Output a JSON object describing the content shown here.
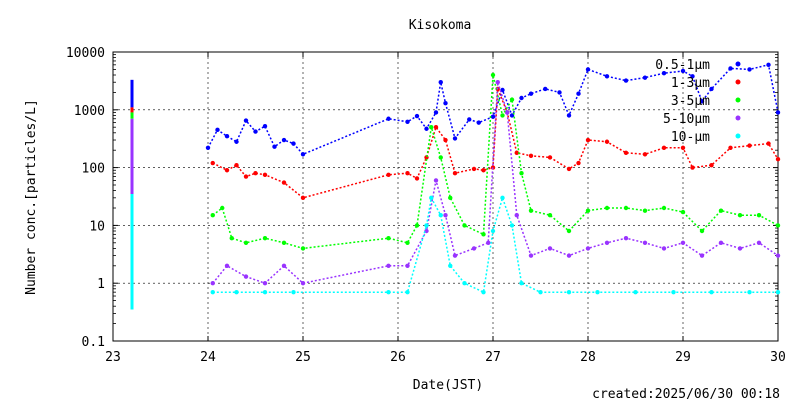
{
  "chart_data": {
    "type": "scatter",
    "title": "Kisokoma",
    "xlabel": "Date(JST)",
    "ylabel": "Number conc.[particles/L]",
    "footer": "created:2025/06/30 00:18",
    "x_range": [
      23,
      30
    ],
    "y_range": [
      0.1,
      10000
    ],
    "y_scale": "log",
    "x_ticks": [
      "23",
      "24",
      "25",
      "26",
      "27",
      "28",
      "29",
      "30"
    ],
    "y_ticks": [
      "0.1",
      "1",
      "10",
      "100",
      "1000",
      "10000"
    ],
    "grid": true,
    "legend_position": "top-right",
    "series": [
      {
        "name": "0.5-1μm",
        "color": "#0000ff",
        "points": [
          [
            24.0,
            220
          ],
          [
            24.1,
            450
          ],
          [
            24.2,
            350
          ],
          [
            24.3,
            280
          ],
          [
            24.4,
            650
          ],
          [
            24.5,
            420
          ],
          [
            24.6,
            520
          ],
          [
            24.7,
            230
          ],
          [
            24.8,
            300
          ],
          [
            24.9,
            260
          ],
          [
            25.0,
            170
          ],
          [
            25.9,
            700
          ],
          [
            26.1,
            620
          ],
          [
            26.2,
            780
          ],
          [
            26.3,
            470
          ],
          [
            26.4,
            900
          ],
          [
            26.45,
            3000
          ],
          [
            26.5,
            1300
          ],
          [
            26.6,
            320
          ],
          [
            26.75,
            680
          ],
          [
            26.85,
            600
          ],
          [
            27.0,
            760
          ],
          [
            27.1,
            2200
          ],
          [
            27.2,
            800
          ],
          [
            27.3,
            1600
          ],
          [
            27.4,
            1900
          ],
          [
            27.55,
            2300
          ],
          [
            27.7,
            2000
          ],
          [
            27.8,
            800
          ],
          [
            27.9,
            1900
          ],
          [
            28.0,
            5000
          ],
          [
            28.2,
            3800
          ],
          [
            28.4,
            3200
          ],
          [
            28.6,
            3600
          ],
          [
            28.8,
            4300
          ],
          [
            29.0,
            4700
          ],
          [
            29.1,
            3800
          ],
          [
            29.2,
            1400
          ],
          [
            29.3,
            2300
          ],
          [
            29.5,
            5200
          ],
          [
            29.7,
            5000
          ],
          [
            29.9,
            6000
          ],
          [
            30.0,
            900
          ]
        ]
      },
      {
        "name": "1-3μm",
        "color": "#ff0000",
        "points": [
          [
            24.05,
            120
          ],
          [
            24.2,
            90
          ],
          [
            24.3,
            110
          ],
          [
            24.4,
            70
          ],
          [
            24.5,
            80
          ],
          [
            24.6,
            75
          ],
          [
            24.8,
            55
          ],
          [
            25.0,
            30
          ],
          [
            25.9,
            75
          ],
          [
            26.1,
            80
          ],
          [
            26.2,
            65
          ],
          [
            26.3,
            150
          ],
          [
            26.4,
            500
          ],
          [
            26.5,
            300
          ],
          [
            26.6,
            80
          ],
          [
            26.8,
            95
          ],
          [
            26.9,
            90
          ],
          [
            27.0,
            100
          ],
          [
            27.05,
            2300
          ],
          [
            27.15,
            900
          ],
          [
            27.25,
            180
          ],
          [
            27.4,
            160
          ],
          [
            27.6,
            150
          ],
          [
            27.8,
            95
          ],
          [
            27.9,
            120
          ],
          [
            28.0,
            300
          ],
          [
            28.2,
            280
          ],
          [
            28.4,
            180
          ],
          [
            28.6,
            170
          ],
          [
            28.8,
            220
          ],
          [
            29.0,
            220
          ],
          [
            29.1,
            100
          ],
          [
            29.3,
            110
          ],
          [
            29.5,
            220
          ],
          [
            29.7,
            240
          ],
          [
            29.9,
            260
          ],
          [
            30.0,
            140
          ]
        ]
      },
      {
        "name": "3-5μm",
        "color": "#00ff00",
        "points": [
          [
            24.05,
            15
          ],
          [
            24.15,
            20
          ],
          [
            24.25,
            6
          ],
          [
            24.4,
            5
          ],
          [
            24.6,
            6
          ],
          [
            24.8,
            5
          ],
          [
            25.0,
            4
          ],
          [
            25.9,
            6
          ],
          [
            26.1,
            5
          ],
          [
            26.2,
            10
          ],
          [
            26.35,
            500
          ],
          [
            26.45,
            150
          ],
          [
            26.55,
            30
          ],
          [
            26.7,
            10
          ],
          [
            26.9,
            7
          ],
          [
            27.0,
            4000
          ],
          [
            27.1,
            800
          ],
          [
            27.2,
            1500
          ],
          [
            27.3,
            80
          ],
          [
            27.4,
            18
          ],
          [
            27.6,
            15
          ],
          [
            27.8,
            8
          ],
          [
            28.0,
            18
          ],
          [
            28.2,
            20
          ],
          [
            28.4,
            20
          ],
          [
            28.6,
            18
          ],
          [
            28.8,
            20
          ],
          [
            29.0,
            17
          ],
          [
            29.2,
            8
          ],
          [
            29.4,
            18
          ],
          [
            29.6,
            15
          ],
          [
            29.8,
            15
          ],
          [
            30.0,
            10
          ]
        ]
      },
      {
        "name": "5-10μm",
        "color": "#9933ff",
        "points": [
          [
            24.05,
            1
          ],
          [
            24.2,
            2
          ],
          [
            24.4,
            1.3
          ],
          [
            24.6,
            1
          ],
          [
            24.8,
            2
          ],
          [
            25.0,
            1
          ],
          [
            25.9,
            2
          ],
          [
            26.1,
            2
          ],
          [
            26.3,
            8
          ],
          [
            26.4,
            60
          ],
          [
            26.5,
            15
          ],
          [
            26.6,
            3
          ],
          [
            26.8,
            4
          ],
          [
            26.95,
            5
          ],
          [
            27.05,
            3000
          ],
          [
            27.15,
            900
          ],
          [
            27.25,
            15
          ],
          [
            27.4,
            3
          ],
          [
            27.6,
            4
          ],
          [
            27.8,
            3
          ],
          [
            28.0,
            4
          ],
          [
            28.2,
            5
          ],
          [
            28.4,
            6
          ],
          [
            28.6,
            5
          ],
          [
            28.8,
            4
          ],
          [
            29.0,
            5
          ],
          [
            29.2,
            3
          ],
          [
            29.4,
            5
          ],
          [
            29.6,
            4
          ],
          [
            29.8,
            5
          ],
          [
            30.0,
            3
          ]
        ]
      },
      {
        "name": "10-μm",
        "color": "#00ffff",
        "points": [
          [
            24.05,
            0.7
          ],
          [
            24.3,
            0.7
          ],
          [
            24.6,
            0.7
          ],
          [
            24.9,
            0.7
          ],
          [
            25.9,
            0.7
          ],
          [
            26.1,
            0.7
          ],
          [
            26.3,
            10
          ],
          [
            26.35,
            30
          ],
          [
            26.45,
            15
          ],
          [
            26.55,
            2
          ],
          [
            26.7,
            1
          ],
          [
            26.9,
            0.7
          ],
          [
            27.0,
            8
          ],
          [
            27.1,
            30
          ],
          [
            27.2,
            10
          ],
          [
            27.3,
            1
          ],
          [
            27.5,
            0.7
          ],
          [
            27.8,
            0.7
          ],
          [
            28.1,
            0.7
          ],
          [
            28.5,
            0.7
          ],
          [
            28.9,
            0.7
          ],
          [
            29.3,
            0.7
          ],
          [
            29.7,
            0.7
          ],
          [
            30.0,
            0.7
          ]
        ]
      }
    ],
    "vertical_bar": {
      "x": 23.2,
      "segments": [
        {
          "color": "#0000ff",
          "from": 1100,
          "to": 3300
        },
        {
          "color": "#ff0000",
          "from": 900,
          "to": 1100
        },
        {
          "color": "#00ff00",
          "from": 700,
          "to": 900
        },
        {
          "color": "#9933ff",
          "from": 35,
          "to": 700
        },
        {
          "color": "#00ffff",
          "from": 0.35,
          "to": 35
        }
      ]
    }
  }
}
